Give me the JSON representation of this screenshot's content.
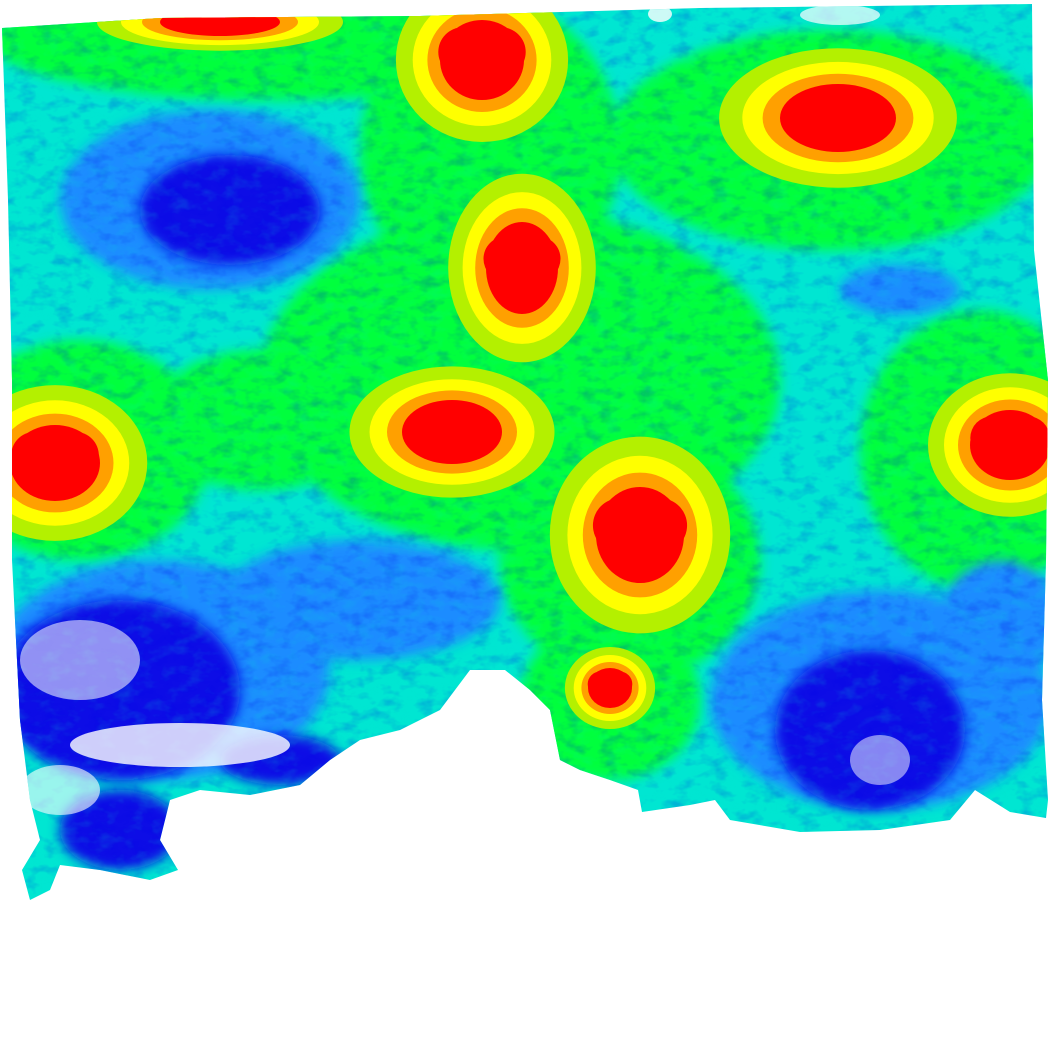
{
  "map": {
    "type": "raster-heatmap",
    "background_color": "#ffffff",
    "color_scale": [
      "#0a0ae6",
      "#1e8cff",
      "#00e6d2",
      "#00ff3c",
      "#b4f000",
      "#ffff00",
      "#ffa000",
      "#ff0000"
    ],
    "hotspot_count": 10,
    "legend_shown": false,
    "labels_shown": false
  }
}
